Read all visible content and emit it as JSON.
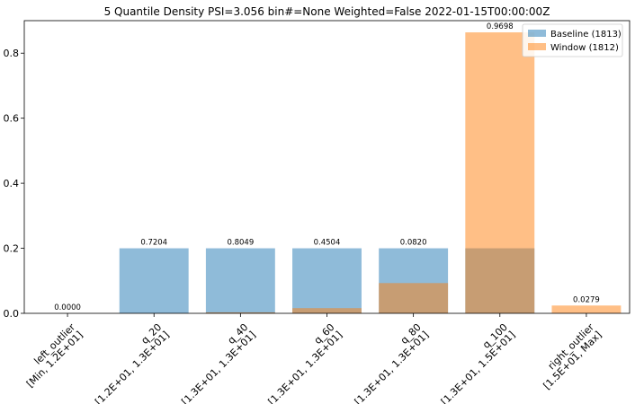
{
  "chart_data": {
    "type": "bar",
    "title": "5 Quantile Density PSI=3.056 bin#=None Weighted=False 2022-01-15T00:00:00Z",
    "xlabel": "",
    "ylabel": "",
    "ylim": [
      0,
      0.9
    ],
    "yticks": [
      "0.0",
      "0.2",
      "0.4",
      "0.6",
      "0.8"
    ],
    "grid": false,
    "legend_position": "top-right",
    "categories": [
      [
        "left_outlier",
        "[Min, 1.2E+01]"
      ],
      [
        "q_20",
        "[1.2E+01, 1.3E+01]"
      ],
      [
        "q_40",
        "[1.3E+01, 1.3E+01]"
      ],
      [
        "q_60",
        "[1.3E+01, 1.3E+01]"
      ],
      [
        "q_80",
        "[1.3E+01, 1.3E+01]"
      ],
      [
        "q_100",
        "[1.3E+01, 1.5E+01]"
      ],
      [
        "right_outlier",
        "[1.5E+01, Max]"
      ]
    ],
    "series": [
      {
        "name": "Baseline (1813)",
        "color": "#1f77b4",
        "opacity": 0.5,
        "values": [
          0.0,
          0.2,
          0.2,
          0.2,
          0.2,
          0.2,
          0.0
        ]
      },
      {
        "name": "Window (1812)",
        "color": "#ff7f0e",
        "opacity": 0.5,
        "values": [
          0.0,
          0.0,
          0.003,
          0.016,
          0.093,
          0.864,
          0.024
        ]
      }
    ],
    "bar_labels": [
      "0.0000",
      "0.7204",
      "0.8049",
      "0.4504",
      "0.0820",
      "0.9698",
      "0.0279"
    ]
  }
}
